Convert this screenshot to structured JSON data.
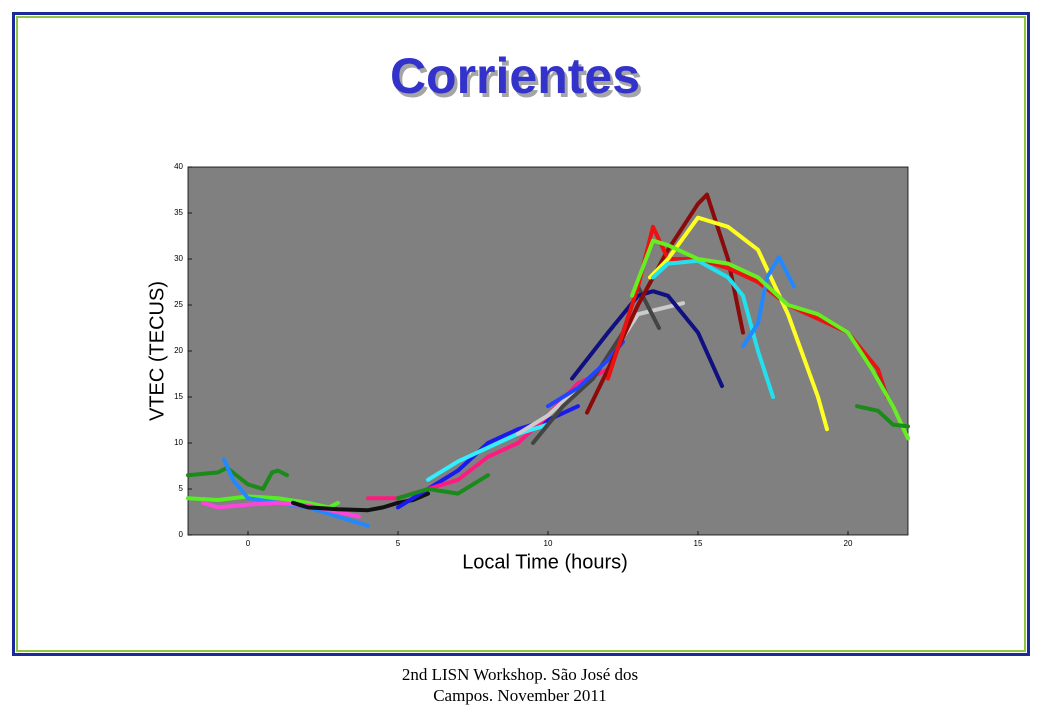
{
  "chart_data": {
    "type": "line",
    "title": "Corrientes",
    "x_label": "Local Time (hours)",
    "y_label": "VTEC (TECUS)",
    "xlim": [
      -2,
      22
    ],
    "ylim": [
      0,
      40
    ],
    "xticks": [
      0,
      5,
      10,
      15,
      20
    ],
    "yticks": [
      0,
      5,
      10,
      15,
      20,
      25,
      30,
      35,
      40
    ],
    "background": "#808080",
    "series": [
      {
        "color": "#1a8a1a",
        "x": [
          -2,
          -1,
          -0.7,
          0,
          0.5,
          0.8,
          1,
          1.3
        ],
        "values": [
          6.5,
          6.8,
          7.3,
          5.5,
          5,
          6.8,
          7,
          6.5
        ]
      },
      {
        "color": "#55ee22",
        "x": [
          -2,
          -1,
          0,
          1,
          2,
          2.7,
          3
        ],
        "values": [
          4,
          3.8,
          4.2,
          4,
          3.5,
          3,
          3.5
        ]
      },
      {
        "color": "#2288ff",
        "x": [
          -0.8,
          -0.5,
          0,
          1,
          2,
          3,
          3.5,
          4
        ],
        "values": [
          8.2,
          6,
          4,
          3.5,
          3,
          2,
          1.5,
          1
        ]
      },
      {
        "color": "#ff44dd",
        "x": [
          -1.5,
          -1,
          0,
          1,
          2,
          3,
          3.7
        ],
        "values": [
          3.5,
          3,
          3.3,
          3.5,
          3.2,
          2.5,
          2
        ]
      },
      {
        "color": "#111111",
        "x": [
          1.5,
          2,
          3,
          4,
          4.5,
          5,
          5.5,
          6
        ],
        "values": [
          3.5,
          3,
          2.8,
          2.7,
          3,
          3.5,
          3.8,
          4.5
        ]
      },
      {
        "color": "#1a1aee",
        "x": [
          5,
          6,
          7,
          8,
          9,
          10,
          11
        ],
        "values": [
          3,
          5,
          7,
          10,
          11.5,
          12.5,
          14
        ]
      },
      {
        "color": "#ff1a80",
        "x": [
          4,
          5,
          6,
          7,
          8,
          9,
          10,
          11,
          12
        ],
        "values": [
          4,
          4,
          5,
          6,
          8.5,
          10,
          13,
          16.5,
          18
        ]
      },
      {
        "color": "#33eeff",
        "x": [
          6,
          7,
          8,
          9,
          10
        ],
        "values": [
          6,
          8,
          9.5,
          11,
          12
        ]
      },
      {
        "color": "#1a8a1a",
        "x": [
          5,
          6,
          7,
          8
        ],
        "values": [
          4,
          5,
          4.5,
          6.5
        ]
      },
      {
        "color": "#cccccc",
        "x": [
          9,
          10,
          11,
          12,
          13,
          14.5
        ],
        "values": [
          11,
          13,
          16,
          19,
          24,
          25.2
        ]
      },
      {
        "color": "#444444",
        "x": [
          9.5,
          10.5,
          11.5,
          12.5,
          13,
          13.7
        ],
        "values": [
          10,
          14,
          17,
          22,
          27,
          22.5
        ]
      },
      {
        "color": "#101080",
        "x": [
          10.8,
          12,
          13,
          13.5,
          14,
          15,
          15.8
        ],
        "values": [
          17,
          22,
          26,
          26.5,
          26,
          22,
          16.2
        ]
      },
      {
        "color": "#2244ff",
        "x": [
          10,
          11,
          12,
          12.5
        ],
        "values": [
          14,
          16,
          19,
          21
        ]
      },
      {
        "color": "#8b0a0a",
        "x": [
          11.3,
          12,
          13,
          14,
          15,
          15.3,
          16,
          16.5
        ],
        "values": [
          13.3,
          18,
          25,
          31,
          36,
          37,
          30,
          22
        ]
      },
      {
        "color": "#ee1111",
        "x": [
          12,
          13,
          13.5,
          14,
          15,
          16,
          17,
          18,
          19,
          20,
          21,
          21.3
        ],
        "values": [
          17,
          27,
          33.5,
          30,
          30,
          29,
          27.5,
          25,
          23.5,
          22,
          18,
          15
        ]
      },
      {
        "color": "#ffff22",
        "x": [
          13.4,
          14,
          15,
          16,
          17,
          18,
          19,
          19.3
        ],
        "values": [
          28,
          30,
          34.5,
          33.5,
          31,
          24,
          15,
          11.5
        ]
      },
      {
        "color": "#22e0ee",
        "x": [
          13.5,
          14,
          15,
          16,
          16.5,
          17,
          17.5
        ],
        "values": [
          28,
          29.5,
          29.8,
          28,
          26,
          20,
          15
        ]
      },
      {
        "color": "#2288ff",
        "x": [
          16.5,
          17,
          17.3,
          17.7,
          18.2
        ],
        "values": [
          20.5,
          23,
          28,
          30.2,
          27
        ]
      },
      {
        "color": "#444444",
        "x": [
          19,
          20,
          21,
          21.5
        ],
        "values": [
          24,
          22,
          17,
          14
        ]
      },
      {
        "color": "#66ee22",
        "x": [
          12.8,
          13.5,
          14,
          15,
          16,
          17,
          18,
          19,
          20,
          20.8,
          21.5,
          22
        ],
        "values": [
          26,
          32,
          31.5,
          30,
          29.5,
          28,
          25,
          24,
          22,
          18,
          14,
          10.5
        ]
      },
      {
        "color": "#1a8a1a",
        "x": [
          20.3,
          21,
          21.5,
          22
        ],
        "values": [
          14,
          13.5,
          12,
          11.8
        ]
      }
    ]
  },
  "footer": "2nd LISN Workshop. São José dos Campos. November 2011"
}
